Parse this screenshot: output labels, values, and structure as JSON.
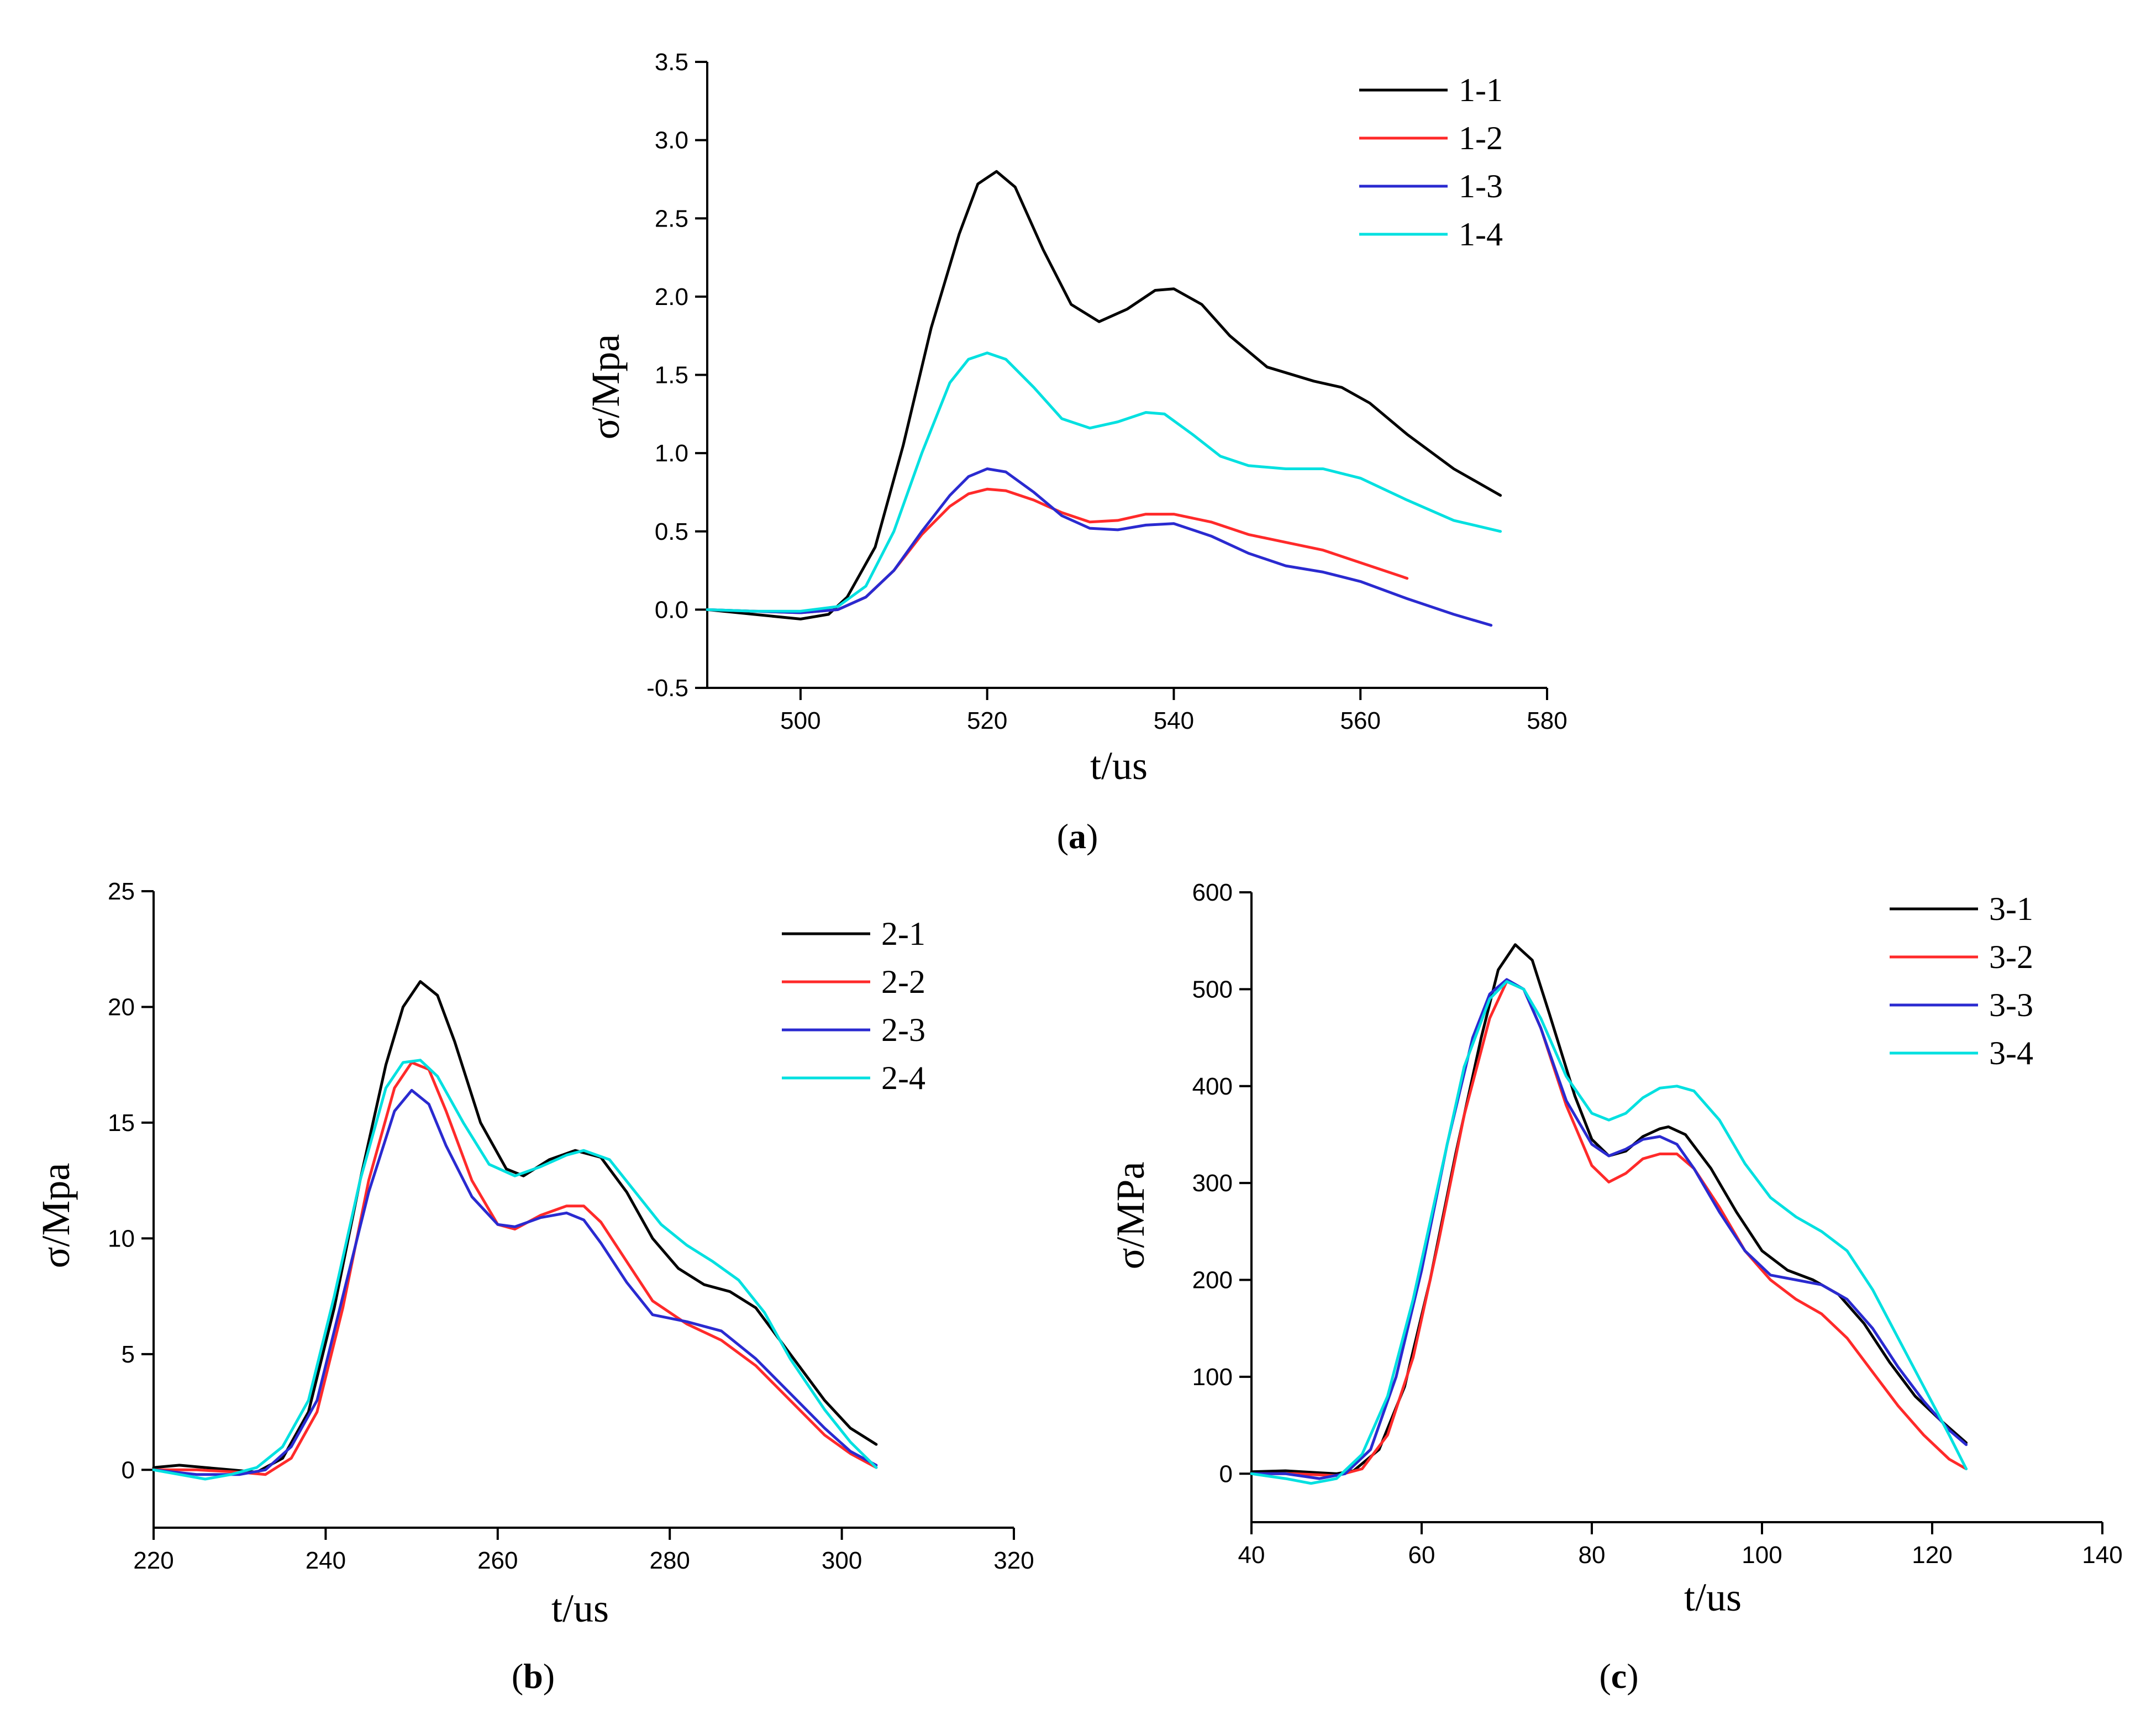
{
  "chart_data": [
    {
      "type": "line",
      "panel_label": "a",
      "xlabel": "t/us",
      "ylabel": "σ/Mpa",
      "xlim": [
        490,
        580
      ],
      "ylim": [
        -0.5,
        3.5
      ],
      "xticks": [
        500,
        520,
        540,
        560,
        580
      ],
      "yticks": [
        -0.5,
        0.0,
        0.5,
        1.0,
        1.5,
        2.0,
        2.5,
        3.0,
        3.5
      ],
      "ytick_labels": [
        "-0.5",
        "0.0",
        "0.5",
        "1.0",
        "1.5",
        "2.0",
        "2.5",
        "3.0",
        "3.5"
      ],
      "legend_position": "top-right",
      "series": [
        {
          "name": "1-1",
          "color": "#000000",
          "x": [
            490,
            495,
            500,
            503,
            505,
            508,
            511,
            514,
            517,
            519,
            521,
            523,
            526,
            529,
            532,
            535,
            538,
            540,
            543,
            546,
            550,
            555,
            558,
            561,
            565,
            570,
            575
          ],
          "y": [
            0.0,
            -0.03,
            -0.06,
            -0.03,
            0.08,
            0.4,
            1.05,
            1.8,
            2.4,
            2.72,
            2.8,
            2.7,
            2.3,
            1.95,
            1.84,
            1.92,
            2.04,
            2.05,
            1.95,
            1.75,
            1.55,
            1.46,
            1.42,
            1.32,
            1.12,
            0.9,
            0.73
          ]
        },
        {
          "name": "1-2",
          "color": "#ff2a2a",
          "x": [
            490,
            495,
            500,
            504,
            507,
            510,
            513,
            516,
            518,
            520,
            522,
            525,
            528,
            531,
            534,
            537,
            540,
            544,
            548,
            552,
            556,
            560,
            565
          ],
          "y": [
            0.0,
            -0.01,
            -0.02,
            0.0,
            0.08,
            0.25,
            0.48,
            0.66,
            0.74,
            0.77,
            0.76,
            0.7,
            0.62,
            0.56,
            0.57,
            0.61,
            0.61,
            0.56,
            0.48,
            0.43,
            0.38,
            0.3,
            0.2
          ]
        },
        {
          "name": "1-3",
          "color": "#2a2ad0",
          "x": [
            490,
            495,
            500,
            504,
            507,
            510,
            513,
            516,
            518,
            520,
            522,
            525,
            528,
            531,
            534,
            537,
            540,
            544,
            548,
            552,
            556,
            560,
            565,
            570,
            574
          ],
          "y": [
            0.0,
            -0.01,
            -0.02,
            0.0,
            0.08,
            0.25,
            0.5,
            0.73,
            0.85,
            0.9,
            0.88,
            0.75,
            0.6,
            0.52,
            0.51,
            0.54,
            0.55,
            0.47,
            0.36,
            0.28,
            0.24,
            0.18,
            0.07,
            -0.03,
            -0.1
          ]
        },
        {
          "name": "1-4",
          "color": "#00e0e0",
          "x": [
            490,
            495,
            500,
            504,
            507,
            510,
            513,
            516,
            518,
            520,
            522,
            525,
            528,
            531,
            534,
            537,
            539,
            542,
            545,
            548,
            552,
            556,
            560,
            565,
            570,
            575
          ],
          "y": [
            0.0,
            -0.01,
            -0.01,
            0.02,
            0.15,
            0.5,
            1.0,
            1.45,
            1.6,
            1.64,
            1.6,
            1.42,
            1.22,
            1.16,
            1.2,
            1.26,
            1.25,
            1.12,
            0.98,
            0.92,
            0.9,
            0.9,
            0.84,
            0.7,
            0.57,
            0.5
          ]
        }
      ]
    },
    {
      "type": "line",
      "panel_label": "b",
      "xlabel": "t/us",
      "ylabel": "σ/Mpa",
      "xlim": [
        220,
        320
      ],
      "ylim": [
        -2.5,
        25
      ],
      "xticks": [
        220,
        240,
        260,
        280,
        300,
        320
      ],
      "yticks": [
        0,
        5,
        10,
        15,
        20,
        25
      ],
      "ytick_labels": [
        "0",
        "5",
        "10",
        "15",
        "20",
        "25"
      ],
      "legend_position": "top-right",
      "series": [
        {
          "name": "2-1",
          "color": "#000000",
          "x": [
            220,
            223,
            226,
            229,
            232,
            235,
            238,
            241,
            244,
            247,
            249,
            251,
            253,
            255,
            258,
            261,
            263,
            266,
            269,
            272,
            275,
            278,
            281,
            284,
            287,
            290,
            294,
            298,
            301,
            304
          ],
          "y": [
            0.1,
            0.2,
            0.1,
            0.0,
            -0.1,
            0.5,
            2.5,
            7.0,
            12.5,
            17.5,
            20.0,
            21.1,
            20.5,
            18.5,
            15.0,
            13.0,
            12.7,
            13.4,
            13.8,
            13.5,
            12.0,
            10.0,
            8.7,
            8.0,
            7.7,
            7.0,
            5.0,
            3.0,
            1.8,
            1.1
          ]
        },
        {
          "name": "2-2",
          "color": "#ff2a2a",
          "x": [
            220,
            225,
            230,
            233,
            236,
            239,
            242,
            245,
            248,
            250,
            252,
            254,
            257,
            260,
            262,
            265,
            268,
            270,
            272,
            275,
            278,
            282,
            286,
            290,
            294,
            298,
            301,
            304
          ],
          "y": [
            0.0,
            0.0,
            -0.1,
            -0.2,
            0.5,
            2.5,
            7.0,
            12.5,
            16.5,
            17.6,
            17.3,
            15.5,
            12.5,
            10.6,
            10.4,
            11.0,
            11.4,
            11.4,
            10.7,
            9.0,
            7.3,
            6.3,
            5.6,
            4.5,
            3.0,
            1.5,
            0.7,
            0.1
          ]
        },
        {
          "name": "2-3",
          "color": "#2a2ad0",
          "x": [
            220,
            225,
            230,
            233,
            236,
            239,
            242,
            245,
            248,
            250,
            252,
            254,
            257,
            260,
            262,
            265,
            268,
            270,
            272,
            275,
            278,
            282,
            286,
            290,
            294,
            298,
            301,
            304
          ],
          "y": [
            0.0,
            -0.2,
            -0.2,
            0.0,
            1.0,
            3.0,
            7.5,
            12.0,
            15.5,
            16.4,
            15.8,
            14.0,
            11.8,
            10.6,
            10.5,
            10.9,
            11.1,
            10.8,
            9.8,
            8.1,
            6.7,
            6.4,
            6.0,
            4.8,
            3.3,
            1.8,
            0.8,
            0.2
          ]
        },
        {
          "name": "2-4",
          "color": "#00e0e0",
          "x": [
            220,
            223,
            226,
            229,
            232,
            235,
            238,
            241,
            244,
            247,
            249,
            251,
            253,
            256,
            259,
            262,
            265,
            268,
            270,
            273,
            276,
            279,
            282,
            285,
            288,
            291,
            294,
            298,
            301,
            304
          ],
          "y": [
            0.0,
            -0.2,
            -0.4,
            -0.2,
            0.1,
            1.0,
            3.0,
            7.5,
            12.5,
            16.5,
            17.6,
            17.7,
            17.0,
            15.0,
            13.2,
            12.7,
            13.1,
            13.6,
            13.8,
            13.4,
            12.0,
            10.6,
            9.7,
            9.0,
            8.2,
            6.8,
            4.8,
            2.6,
            1.2,
            0.1
          ]
        }
      ]
    },
    {
      "type": "line",
      "panel_label": "c",
      "xlabel": "t/us",
      "ylabel": "σ/MPa",
      "xlim": [
        40,
        140
      ],
      "ylim": [
        -50,
        600
      ],
      "xticks": [
        40,
        60,
        80,
        100,
        120,
        140
      ],
      "yticks": [
        0,
        100,
        200,
        300,
        400,
        500,
        600
      ],
      "ytick_labels": [
        "0",
        "100",
        "200",
        "300",
        "400",
        "500",
        "600"
      ],
      "legend_position": "top-right",
      "series": [
        {
          "name": "3-1",
          "color": "#000000",
          "x": [
            40,
            44,
            48,
            50,
            52,
            55,
            58,
            61,
            64,
            67,
            69,
            71,
            73,
            75,
            78,
            80,
            82,
            84,
            86,
            88,
            89,
            91,
            94,
            97,
            100,
            103,
            106,
            109,
            112,
            115,
            118,
            121,
            124
          ],
          "y": [
            2,
            3,
            1,
            0,
            3,
            25,
            90,
            200,
            330,
            450,
            520,
            546,
            530,
            475,
            390,
            345,
            328,
            333,
            348,
            356,
            358,
            350,
            315,
            270,
            230,
            210,
            200,
            185,
            155,
            115,
            80,
            55,
            32
          ]
        },
        {
          "name": "3-2",
          "color": "#ff2a2a",
          "x": [
            40,
            45,
            50,
            53,
            56,
            59,
            62,
            65,
            68,
            70,
            72,
            74,
            77,
            80,
            82,
            84,
            86,
            88,
            90,
            92,
            95,
            98,
            101,
            104,
            107,
            110,
            113,
            116,
            119,
            122,
            124
          ],
          "y": [
            0,
            0,
            -2,
            5,
            40,
            120,
            240,
            370,
            470,
            508,
            500,
            460,
            380,
            318,
            301,
            310,
            325,
            330,
            330,
            315,
            275,
            230,
            200,
            180,
            165,
            140,
            105,
            70,
            40,
            15,
            5
          ]
        },
        {
          "name": "3-3",
          "color": "#2a2ad0",
          "x": [
            40,
            44,
            48,
            51,
            54,
            57,
            60,
            63,
            66,
            68,
            70,
            72,
            74,
            77,
            80,
            82,
            84,
            86,
            88,
            90,
            92,
            95,
            98,
            101,
            104,
            107,
            110,
            113,
            116,
            119,
            122,
            124
          ],
          "y": [
            0,
            0,
            -5,
            0,
            25,
            100,
            210,
            340,
            450,
            495,
            510,
            500,
            460,
            385,
            340,
            328,
            335,
            345,
            348,
            340,
            315,
            270,
            230,
            205,
            200,
            195,
            180,
            150,
            110,
            75,
            45,
            30
          ]
        },
        {
          "name": "3-4",
          "color": "#00e0e0",
          "x": [
            40,
            44,
            47,
            50,
            53,
            56,
            59,
            62,
            65,
            68,
            70,
            72,
            74,
            77,
            80,
            82,
            84,
            86,
            88,
            90,
            92,
            95,
            98,
            101,
            104,
            107,
            110,
            113,
            116,
            119,
            122,
            124
          ],
          "y": [
            0,
            -5,
            -10,
            -5,
            20,
            80,
            180,
            300,
            420,
            490,
            508,
            500,
            470,
            410,
            372,
            365,
            372,
            388,
            398,
            400,
            395,
            365,
            320,
            285,
            265,
            250,
            230,
            190,
            140,
            90,
            40,
            5
          ]
        }
      ]
    }
  ]
}
